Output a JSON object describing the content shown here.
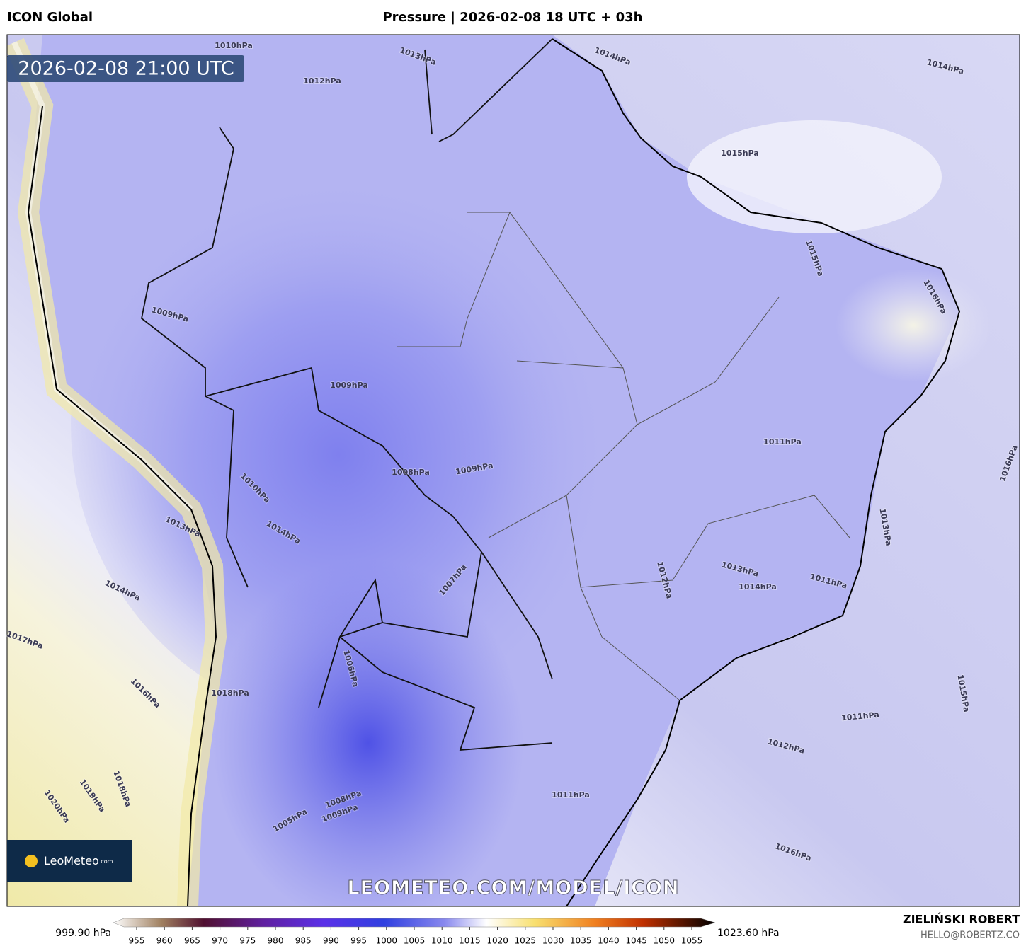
{
  "header": {
    "model": "ICON Global",
    "title": "Pressure | 2026-02-08 18 UTC + 03h"
  },
  "map": {
    "timestamp": "2026-02-08 21:00 UTC",
    "watermark": "LEOMETEO.COM/MODEL/ICON",
    "logo": "LeoMeteo",
    "logo_suffix": ".com",
    "contour_labels": [
      "1014hPa",
      "1014hPa",
      "1015hPa",
      "1010hPa",
      "1012hPa",
      "1013hPa",
      "1009hPa",
      "1009hPa",
      "1008hPa",
      "1009hPa",
      "1015hPa",
      "1016hPa",
      "1011hPa",
      "1013hPa",
      "1012hPa",
      "1013hPa",
      "1014hPa",
      "1011hPa",
      "1007hPa",
      "1011hPa",
      "1012hPa",
      "1011hPa",
      "1016hPa",
      "1015hPa",
      "1016hPa",
      "1014hPa",
      "1017hPa",
      "1016hPa",
      "1020hPa",
      "1019hPa",
      "1018hPa",
      "1018hPa",
      "1006hPa",
      "1008hPa",
      "1009hPa",
      "1005hPa",
      "1010hPa",
      "1014hPa",
      "1013hPa"
    ]
  },
  "colorbar": {
    "min_label": "999.90 hPa",
    "max_label": "1023.60 hPa",
    "ticks": [
      955,
      960,
      965,
      970,
      975,
      980,
      985,
      990,
      995,
      1000,
      1005,
      1010,
      1015,
      1020,
      1025,
      1030,
      1035,
      1040,
      1045,
      1050,
      1055
    ]
  },
  "footer": {
    "author": "ZIELIŃSKI ROBERT",
    "contact": "HELLO@ROBERTZ.CO"
  }
}
